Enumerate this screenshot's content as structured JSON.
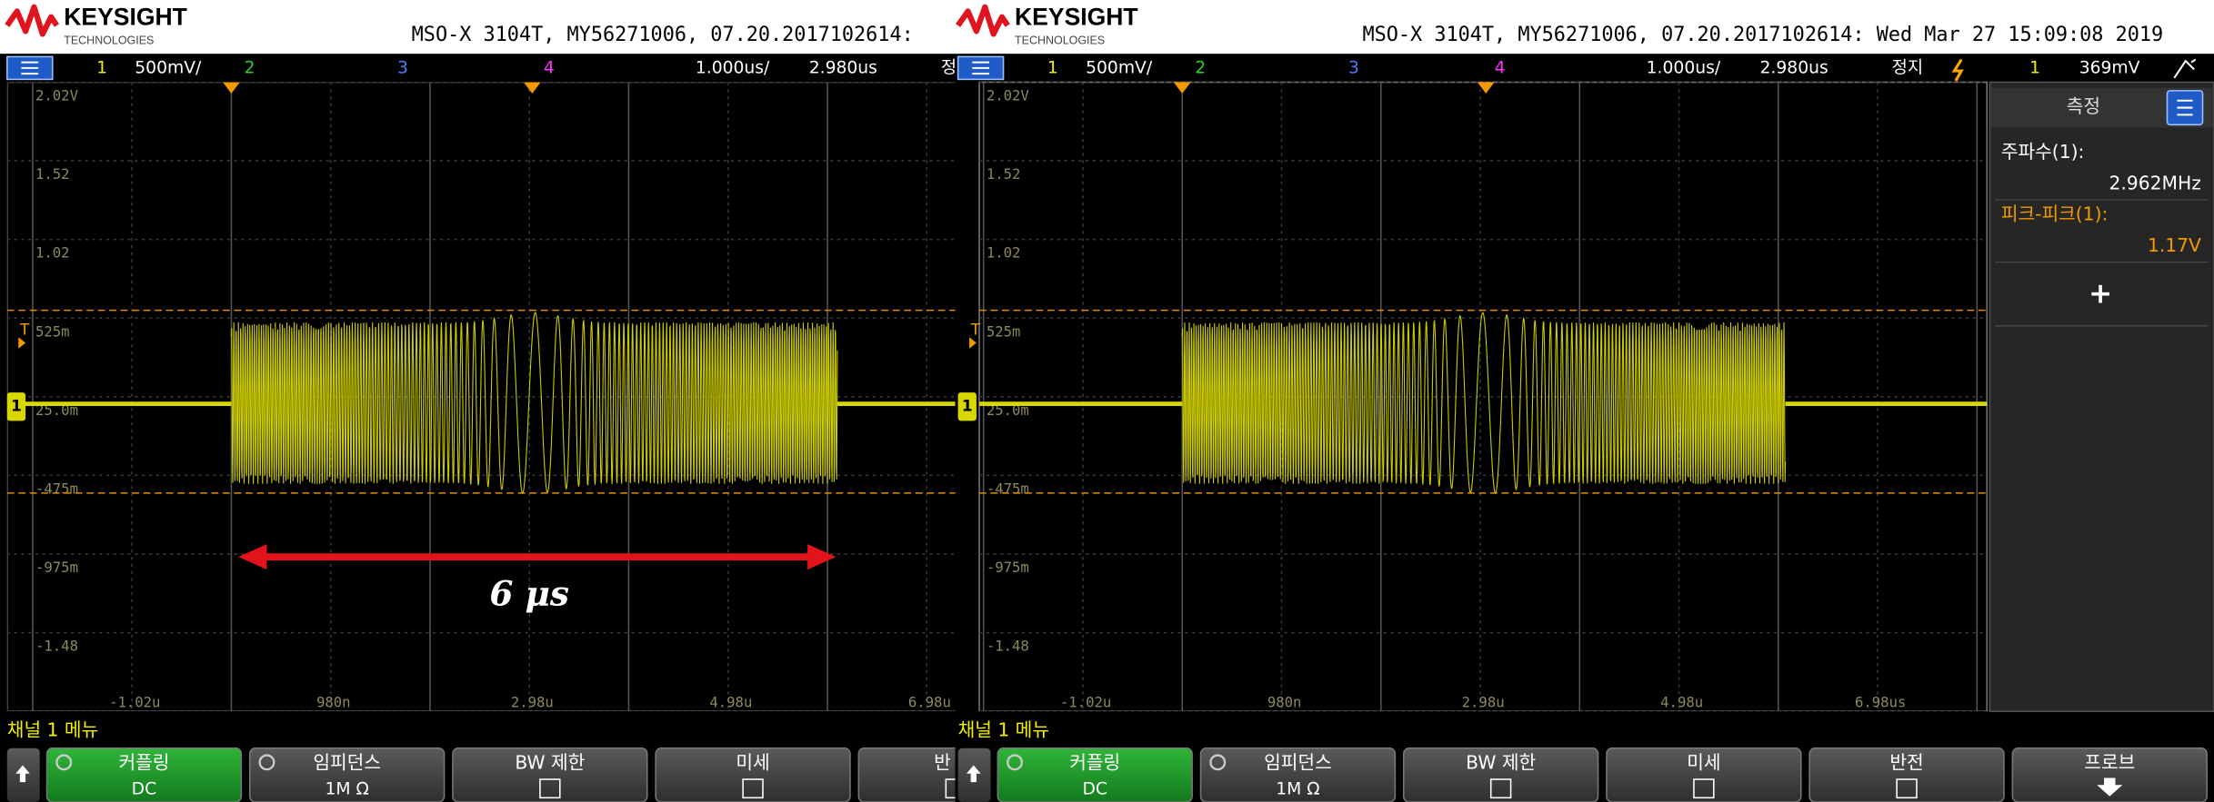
{
  "left_screen": {
    "header": {
      "logo": "KEYSIGHT",
      "logo_sub": "TECHNOLOGIES",
      "info": "MSO-X 3104T, MY56271006, 07.20.2017102614:"
    },
    "status": {
      "ch1": "1",
      "scale": "500mV/",
      "ch2": "2",
      "ch3": "3",
      "ch4": "4",
      "timebase": "1.000us/",
      "delay": "2.980us",
      "run": "정"
    },
    "y_labels": [
      "2.02V",
      "1.52",
      "1.02",
      "525m",
      "25.0m",
      "-475m",
      "-975m",
      "-1.48"
    ],
    "x_labels": [
      "-1.02u",
      "980n",
      "2.98u",
      "4.98u",
      "6.98u"
    ],
    "trigger_marker": "T",
    "channel_marker": "1",
    "annotation": "6 μs",
    "menu_title": "채널 1 메뉴",
    "softkeys": [
      {
        "label": "커플링",
        "value": "DC"
      },
      {
        "label": "임피던스",
        "value": "1M Ω"
      },
      {
        "label": "BW 제한"
      },
      {
        "label": "미세"
      },
      {
        "label": "반"
      }
    ]
  },
  "right_screen": {
    "header": {
      "logo": "KEYSIGHT",
      "logo_sub": "TECHNOLOGIES",
      "info": "MSO-X 3104T, MY56271006, 07.20.2017102614: Wed Mar 27 15:09:08 2019"
    },
    "status": {
      "ch1": "1",
      "scale": "500mV/",
      "ch2": "2",
      "ch3": "3",
      "ch4": "4",
      "timebase": "1.000us/",
      "delay": "2.980us",
      "run": "정지",
      "trigger_channel": "1",
      "trigger_level": "369mV"
    },
    "y_labels": [
      "2.02V",
      "1.52",
      "1.02",
      "525m",
      "25.0m",
      "-475m",
      "-975m",
      "-1.48"
    ],
    "x_labels": [
      "-1.02u",
      "980n",
      "2.98u",
      "4.98u",
      "6.98us"
    ],
    "trigger_marker": "T",
    "channel_marker": "1",
    "menu_title": "채널 1 메뉴",
    "softkeys": [
      {
        "label": "커플링",
        "value": "DC"
      },
      {
        "label": "임피던스",
        "value": "1M Ω"
      },
      {
        "label": "BW 제한"
      },
      {
        "label": "미세"
      },
      {
        "label": "반전"
      },
      {
        "label": "프로브"
      }
    ],
    "measurements": {
      "title": "측정",
      "items": [
        {
          "label": "주파수(1):",
          "value": "2.962MHz"
        },
        {
          "label": "피크-피크(1):",
          "value": "1.17V"
        }
      ],
      "add": "+"
    }
  }
}
